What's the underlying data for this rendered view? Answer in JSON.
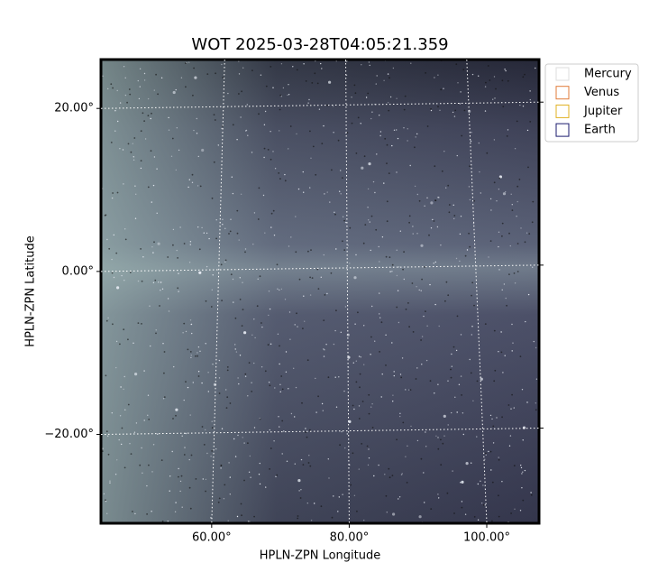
{
  "chart_data": {
    "type": "image",
    "title": "WOT 2025-03-28T04:05:21.359",
    "x_label": "HPLN-ZPN Longitude",
    "y_label": "HPLN-ZPN Latitude",
    "xlim": [
      43.9,
      107.6
    ],
    "ylim": [
      -30.9,
      26
    ],
    "xticks": [
      {
        "value": 60,
        "label": "60.00°"
      },
      {
        "value": 80,
        "label": "80.00°"
      },
      {
        "value": 100,
        "label": "100.00°"
      }
    ],
    "yticks": [
      {
        "value": -20,
        "label": "−20.00°"
      },
      {
        "value": 0,
        "label": "0.00°"
      },
      {
        "value": 20,
        "label": "20.00°"
      }
    ],
    "grid": true,
    "legend_position": "outside upper right",
    "series": [
      {
        "name": "Mercury",
        "color": "#dddddd"
      },
      {
        "name": "Venus",
        "color": "#e07b39"
      },
      {
        "name": "Jupiter",
        "color": "#e0b020"
      },
      {
        "name": "Earth",
        "color": "#1a1a6e"
      }
    ]
  }
}
